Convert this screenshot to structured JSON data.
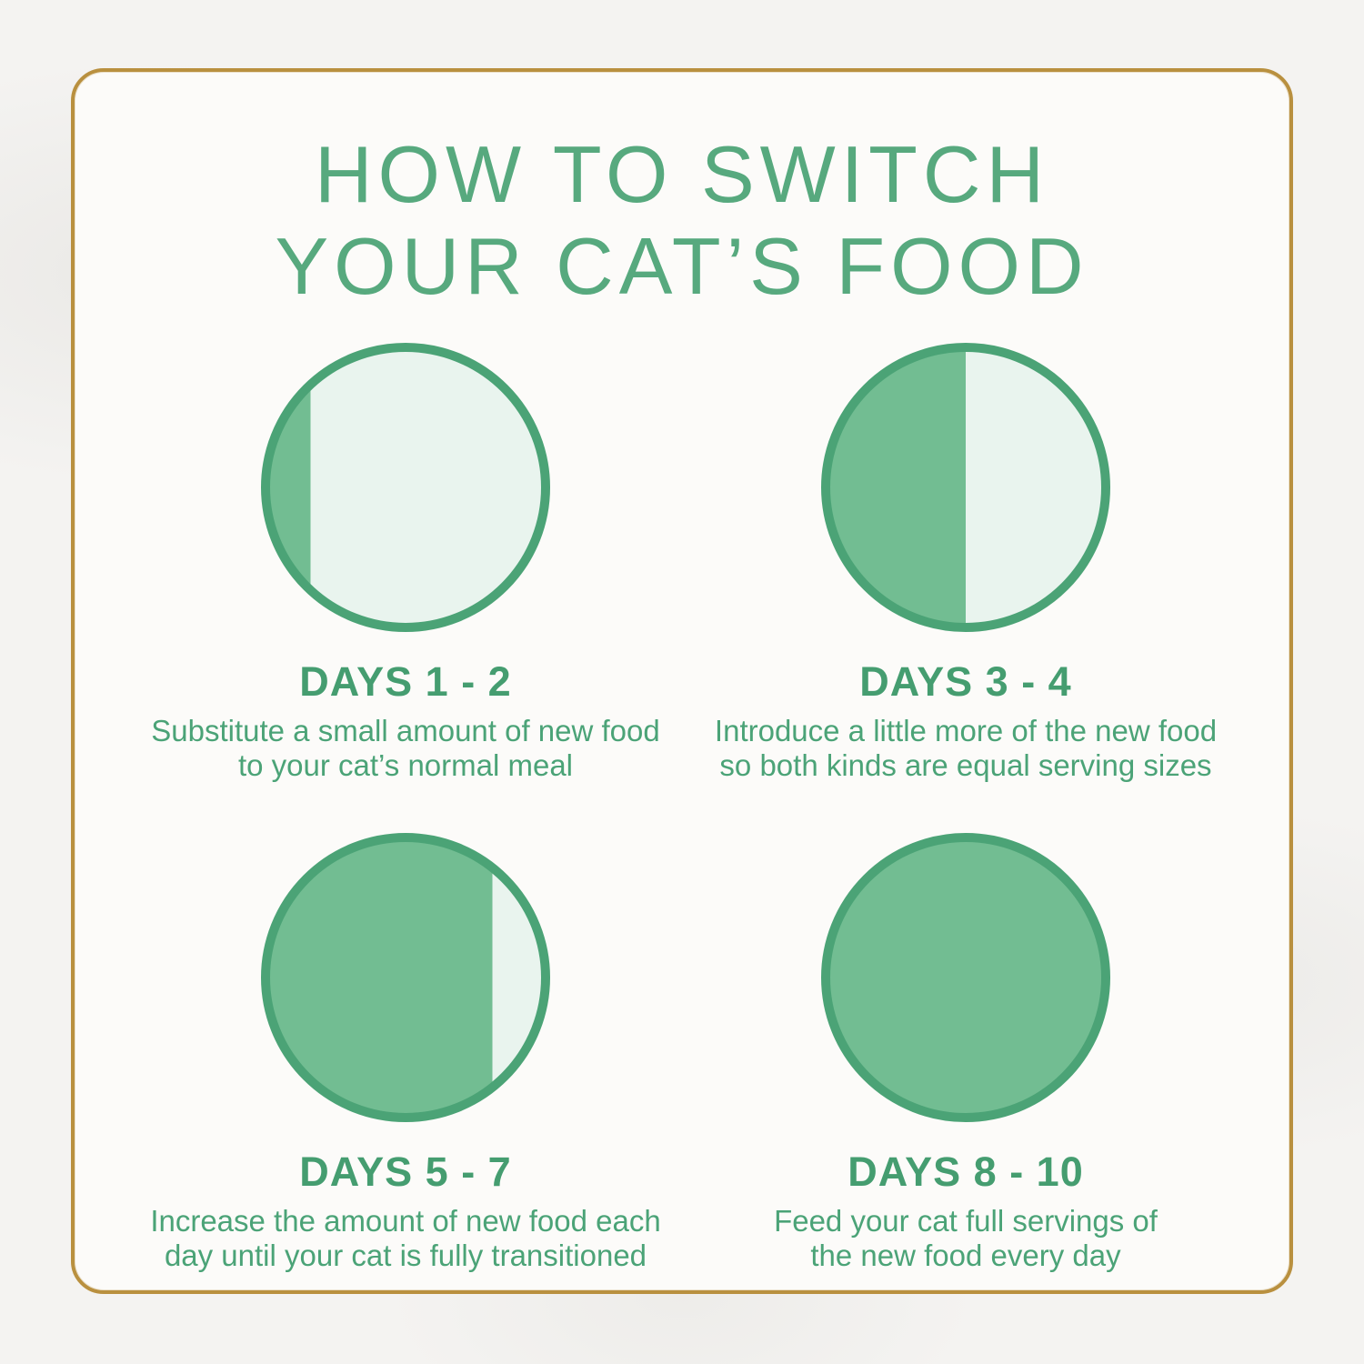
{
  "title": {
    "line1": "HOW TO SWITCH",
    "line2": "YOUR CAT’S FOOD"
  },
  "colors": {
    "accent_green": "#57a97e",
    "heading_green": "#459d70",
    "text_green": "#4ba377",
    "circle_border_green": "#4ba376",
    "circle_fill_green": "#72bd92",
    "circle_empty_green": "#e9f4ee",
    "gold_border": "#b9903f",
    "background": "#f4f3f1",
    "card_background": "#fcfbf9"
  },
  "steps": [
    {
      "heading": "DAYS 1 - 2",
      "description_line1": "Substitute a small amount of new food",
      "description_line2": "to your cat’s normal meal",
      "new_food_percent": 15
    },
    {
      "heading": "DAYS 3 - 4",
      "description_line1": "Introduce a little more of the new food",
      "description_line2": "so both kinds are equal serving sizes",
      "new_food_percent": 50
    },
    {
      "heading": "DAYS 5 - 7",
      "description_line1": "Increase the amount of new food each",
      "description_line2": "day until your cat is fully transitioned",
      "new_food_percent": 82
    },
    {
      "heading": "DAYS 8 - 10",
      "description_line1": "Feed your cat full servings of",
      "description_line2": "the new food every day",
      "new_food_percent": 100
    }
  ]
}
